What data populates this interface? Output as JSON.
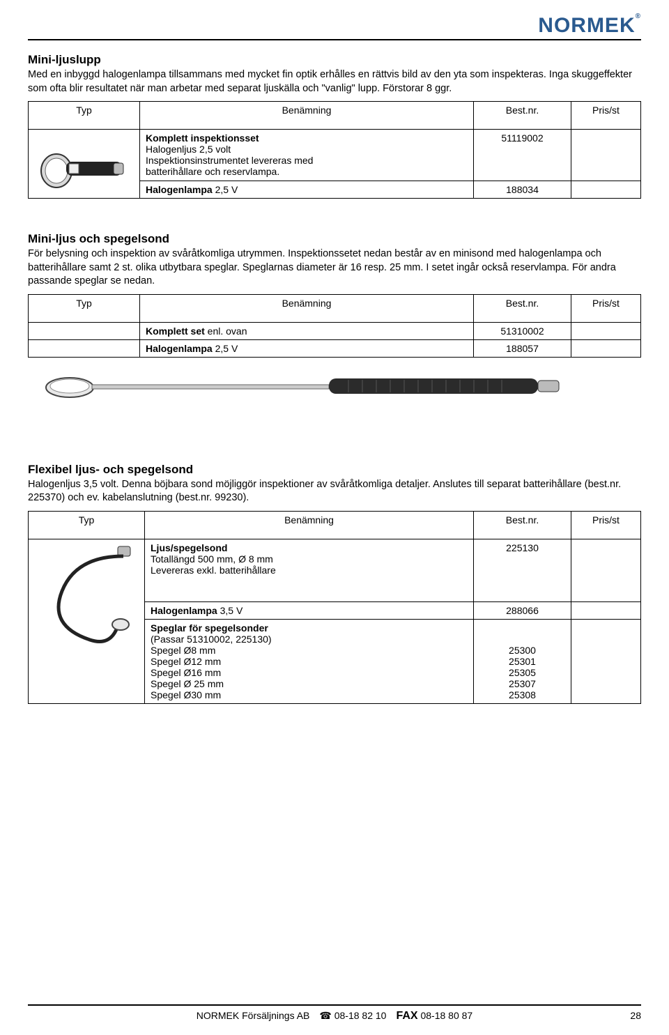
{
  "brand": {
    "name": "NORMEK",
    "reg": "®",
    "color": "#2a5a8f"
  },
  "sec1": {
    "title": "Mini-ljuslupp",
    "desc": "Med en inbyggd halogenlampa tillsammans med mycket fin optik erhålles en rättvis bild av den yta som inspekteras. Inga skuggeffekter som ofta blir resultatet när man arbetar med separat ljuskälla och \"vanlig\" lupp. Förstorar 8 ggr.",
    "headers": {
      "typ": "Typ",
      "ben": "Benämning",
      "nr": "Best.nr.",
      "pr": "Pris/st"
    },
    "rows": [
      {
        "ben_html": "<span class='bold'>Komplett inspektionsset</span><br>Halogenljus 2,5 volt<br>Inspektionsinstrumentet levereras med<br>batterihållare och reservlampa.",
        "nr": "51119002"
      },
      {
        "ben_html": "<span class='bold'>Halogenlampa</span> 2,5 V",
        "nr": "188034"
      }
    ]
  },
  "sec2": {
    "title": "Mini-ljus och spegelsond",
    "desc": "För belysning och inspektion av svåråtkomliga utrymmen. Inspektionssetet nedan består av en minisond med halogenlampa och batterihållare samt 2 st. olika utbytbara speglar. Speglarnas diameter är 16 resp. 25 mm. I setet ingår också reservlampa. För andra passande speglar se nedan.",
    "headers": {
      "typ": "Typ",
      "ben": "Benämning",
      "nr": "Best.nr.",
      "pr": "Pris/st"
    },
    "rows": [
      {
        "ben_html": "<span class='bold'>Komplett set</span> enl. ovan",
        "nr": "51310002"
      },
      {
        "ben_html": "<span class='bold'>Halogenlampa</span> 2,5 V",
        "nr": "188057"
      }
    ]
  },
  "sec3": {
    "title": "Flexibel ljus- och spegelsond",
    "desc": "Halogenljus 3,5 volt. Denna böjbara sond möjliggör inspektioner av svåråtkomliga detaljer. Anslutes till separat batterihållare (best.nr. 225370) och ev. kabelanslutning (best.nr. 99230).",
    "headers": {
      "typ": "Typ",
      "ben": "Benämning",
      "nr": "Best.nr.",
      "pr": "Pris/st"
    },
    "rows": [
      {
        "ben_html": "<span class='bold'>Ljus/spegelsond</span><br>Totallängd 500 mm, Ø 8 mm<br>Levereras exkl. batterihållare",
        "nr": "225130"
      },
      {
        "ben_html": "<span class='bold'>Halogenlampa</span> 3,5 V",
        "nr": "288066"
      },
      {
        "ben_html": "<span class='bold'>Speglar för spegelsonder</span><br>(Passar 51310002, 225130)<br>Spegel Ø8 mm<br>Spegel Ø12 mm<br>Spegel Ø16 mm<br>Spegel Ø 25 mm<br>Spegel Ø30 mm",
        "nr_html": "<br><br>25300<br>25301<br>25305<br>25307<br>25308"
      }
    ]
  },
  "footer": {
    "company": "NORMEK Försäljnings AB",
    "tel_label": "☎",
    "tel": "08-18 82 10",
    "fax_label": "FAX",
    "fax": "08-18 80 87",
    "page": "28"
  }
}
